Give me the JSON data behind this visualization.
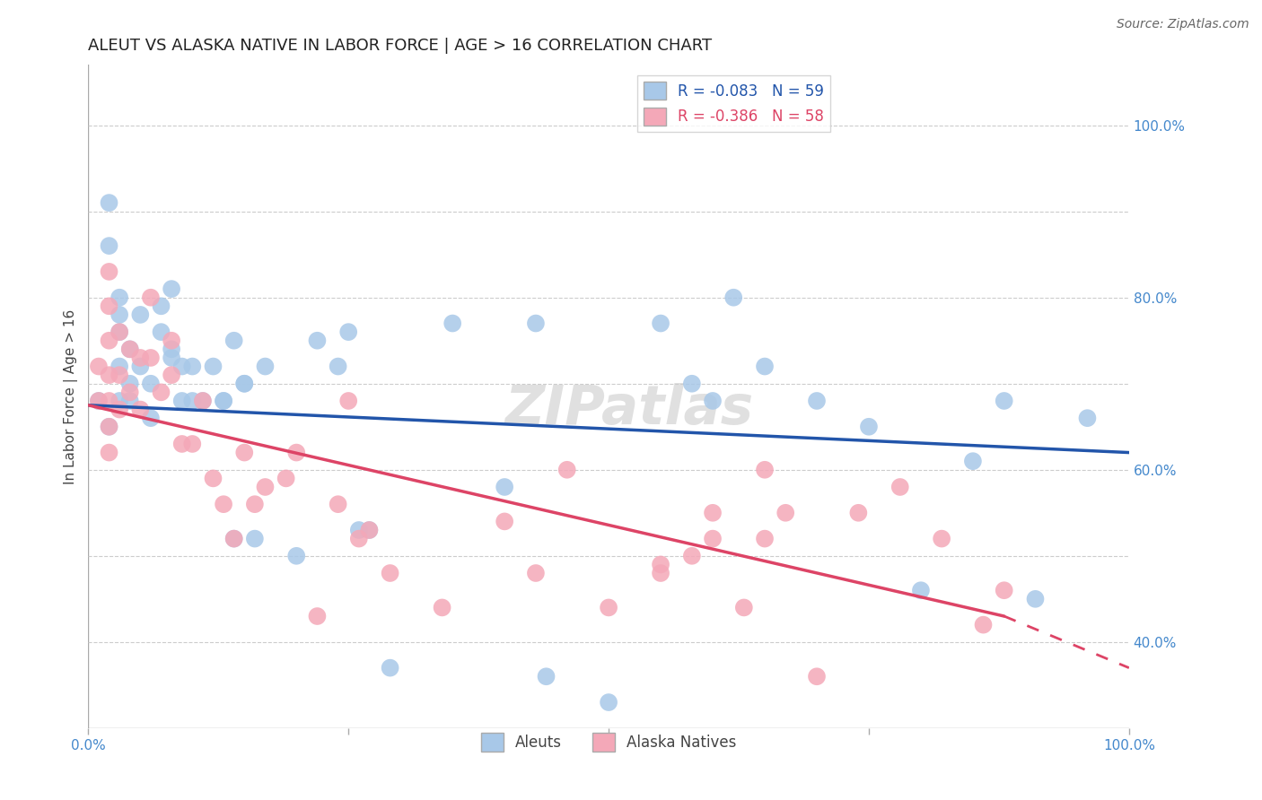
{
  "title": "ALEUT VS ALASKA NATIVE IN LABOR FORCE | AGE > 16 CORRELATION CHART",
  "source": "Source: ZipAtlas.com",
  "ylabel": "In Labor Force | Age > 16",
  "xlim": [
    0.0,
    1.0
  ],
  "ylim": [
    0.3,
    1.07
  ],
  "xtick_positions": [
    0.0,
    0.25,
    0.5,
    0.75,
    1.0
  ],
  "xtick_labels": [
    "0.0%",
    "",
    "",
    "",
    "100.0%"
  ],
  "yticks_right": [
    1.0,
    0.8,
    0.6,
    0.4
  ],
  "ytick_labels_right": [
    "100.0%",
    "80.0%",
    "60.0%",
    "40.0%"
  ],
  "aleut_R": -0.083,
  "aleut_N": 59,
  "native_R": -0.386,
  "native_N": 58,
  "aleut_color": "#a8c8e8",
  "native_color": "#f4a8b8",
  "aleut_line_color": "#2255aa",
  "native_line_color": "#dd4466",
  "background_color": "#ffffff",
  "watermark": "ZIPatlas",
  "aleut_line_x0": 0.0,
  "aleut_line_y0": 0.675,
  "aleut_line_x1": 1.0,
  "aleut_line_y1": 0.62,
  "native_line_x0": 0.0,
  "native_line_y0": 0.675,
  "native_line_x1_solid": 0.88,
  "native_line_y1_solid": 0.43,
  "native_line_x1_dash": 1.0,
  "native_line_y1_dash": 0.37,
  "aleut_x": [
    0.01,
    0.02,
    0.02,
    0.03,
    0.03,
    0.03,
    0.03,
    0.04,
    0.04,
    0.05,
    0.05,
    0.06,
    0.07,
    0.07,
    0.08,
    0.08,
    0.09,
    0.09,
    0.1,
    0.11,
    0.12,
    0.13,
    0.14,
    0.14,
    0.15,
    0.16,
    0.17,
    0.2,
    0.22,
    0.24,
    0.25,
    0.27,
    0.29,
    0.35,
    0.4,
    0.44,
    0.5,
    0.55,
    0.6,
    0.62,
    0.65,
    0.7,
    0.75,
    0.8,
    0.85,
    0.88,
    0.91,
    0.96,
    0.02,
    0.03,
    0.04,
    0.06,
    0.08,
    0.1,
    0.13,
    0.15,
    0.26,
    0.43,
    0.58
  ],
  "aleut_y": [
    0.68,
    0.91,
    0.86,
    0.8,
    0.78,
    0.76,
    0.72,
    0.74,
    0.7,
    0.78,
    0.72,
    0.7,
    0.79,
    0.76,
    0.81,
    0.74,
    0.72,
    0.68,
    0.72,
    0.68,
    0.72,
    0.68,
    0.75,
    0.52,
    0.7,
    0.52,
    0.72,
    0.5,
    0.75,
    0.72,
    0.76,
    0.53,
    0.37,
    0.77,
    0.58,
    0.36,
    0.33,
    0.77,
    0.68,
    0.8,
    0.72,
    0.68,
    0.65,
    0.46,
    0.61,
    0.68,
    0.45,
    0.66,
    0.65,
    0.68,
    0.68,
    0.66,
    0.73,
    0.68,
    0.68,
    0.7,
    0.53,
    0.77,
    0.7
  ],
  "native_x": [
    0.01,
    0.01,
    0.02,
    0.02,
    0.02,
    0.02,
    0.02,
    0.02,
    0.02,
    0.03,
    0.03,
    0.03,
    0.04,
    0.04,
    0.05,
    0.05,
    0.06,
    0.06,
    0.07,
    0.08,
    0.08,
    0.09,
    0.1,
    0.11,
    0.12,
    0.13,
    0.14,
    0.15,
    0.16,
    0.17,
    0.19,
    0.2,
    0.22,
    0.24,
    0.25,
    0.26,
    0.27,
    0.29,
    0.34,
    0.4,
    0.43,
    0.46,
    0.5,
    0.55,
    0.58,
    0.6,
    0.63,
    0.65,
    0.67,
    0.7,
    0.74,
    0.78,
    0.82,
    0.86,
    0.88,
    0.6,
    0.65,
    0.55
  ],
  "native_y": [
    0.72,
    0.68,
    0.83,
    0.79,
    0.75,
    0.71,
    0.68,
    0.65,
    0.62,
    0.76,
    0.71,
    0.67,
    0.74,
    0.69,
    0.73,
    0.67,
    0.8,
    0.73,
    0.69,
    0.75,
    0.71,
    0.63,
    0.63,
    0.68,
    0.59,
    0.56,
    0.52,
    0.62,
    0.56,
    0.58,
    0.59,
    0.62,
    0.43,
    0.56,
    0.68,
    0.52,
    0.53,
    0.48,
    0.44,
    0.54,
    0.48,
    0.6,
    0.44,
    0.48,
    0.5,
    0.52,
    0.44,
    0.6,
    0.55,
    0.36,
    0.55,
    0.58,
    0.52,
    0.42,
    0.46,
    0.55,
    0.52,
    0.49
  ],
  "grid_color": "#cccccc",
  "grid_yticks": [
    1.0,
    0.9,
    0.8,
    0.7,
    0.6,
    0.5,
    0.4
  ],
  "title_fontsize": 13,
  "label_fontsize": 11,
  "tick_fontsize": 11,
  "legend_fontsize": 12
}
